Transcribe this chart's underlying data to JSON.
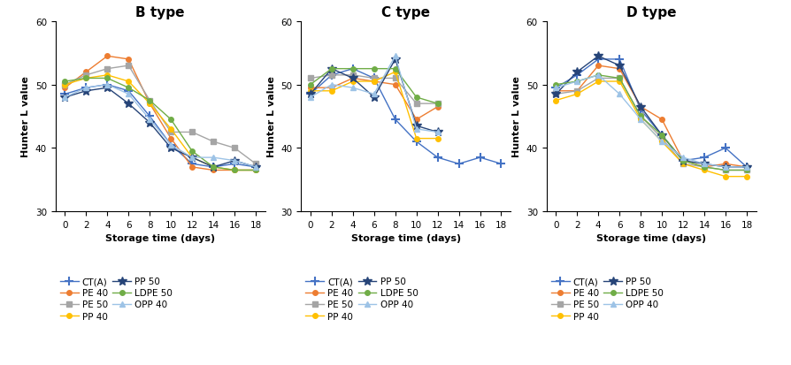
{
  "days_B": [
    0,
    2,
    4,
    6,
    8,
    10,
    12,
    14,
    16,
    18
  ],
  "days_C": [
    0,
    2,
    4,
    6,
    8,
    10,
    12,
    14,
    16,
    18
  ],
  "days_D": [
    0,
    2,
    4,
    6,
    8,
    10,
    12,
    14,
    16,
    18
  ],
  "B": {
    "CT_A": [
      48.5,
      49.5,
      50.0,
      49.0,
      45.0,
      40.5,
      37.5,
      37.0,
      37.5,
      37.0
    ],
    "PE_40": [
      49.5,
      52.0,
      54.5,
      54.0,
      47.0,
      41.5,
      37.0,
      36.5,
      36.5,
      36.5
    ],
    "PE_50": [
      50.0,
      51.5,
      52.5,
      53.0,
      47.5,
      42.5,
      42.5,
      41.0,
      40.0,
      37.5
    ],
    "PP_40": [
      50.0,
      51.0,
      51.5,
      50.5,
      47.0,
      43.0,
      38.5,
      37.0,
      36.5,
      36.5
    ],
    "PP_50": [
      48.0,
      49.0,
      49.5,
      47.0,
      44.0,
      40.0,
      38.5,
      37.0,
      38.0,
      37.0
    ],
    "LDPE_50": [
      50.5,
      51.0,
      51.0,
      49.5,
      47.5,
      44.5,
      39.5,
      37.0,
      36.5,
      36.5
    ],
    "OPP_40": [
      48.0,
      49.5,
      50.0,
      48.5,
      44.5,
      40.5,
      38.5,
      38.5,
      38.0,
      37.0
    ]
  },
  "C": {
    "CT_A": [
      48.5,
      51.5,
      52.5,
      51.0,
      44.5,
      41.0,
      38.5,
      37.5,
      38.5,
      37.5
    ],
    "PE_40": [
      49.5,
      49.5,
      51.0,
      50.5,
      50.0,
      44.5,
      46.5,
      null,
      null,
      null
    ],
    "PE_50": [
      51.0,
      51.5,
      51.5,
      51.0,
      51.0,
      47.0,
      47.0,
      null,
      null,
      null
    ],
    "PP_40": [
      49.0,
      49.0,
      50.5,
      50.5,
      52.0,
      41.5,
      41.5,
      null,
      null,
      null
    ],
    "PP_50": [
      48.5,
      52.5,
      51.0,
      48.0,
      54.0,
      43.5,
      42.5,
      null,
      null,
      null
    ],
    "LDPE_50": [
      50.0,
      52.5,
      52.5,
      52.5,
      52.5,
      48.0,
      47.0,
      null,
      null,
      null
    ],
    "OPP_40": [
      48.0,
      50.0,
      49.5,
      48.5,
      54.5,
      43.0,
      42.5,
      null,
      null,
      null
    ]
  },
  "D": {
    "CT_A": [
      49.5,
      51.5,
      54.0,
      54.0,
      46.0,
      42.0,
      38.0,
      38.5,
      40.0,
      37.0
    ],
    "PE_40": [
      49.0,
      49.0,
      53.0,
      52.5,
      46.5,
      44.5,
      38.0,
      37.0,
      37.5,
      37.0
    ],
    "PE_50": [
      48.5,
      49.0,
      51.0,
      51.0,
      45.0,
      41.5,
      37.5,
      37.0,
      36.5,
      36.5
    ],
    "PP_40": [
      47.5,
      48.5,
      50.5,
      50.5,
      44.5,
      41.0,
      37.5,
      36.5,
      35.5,
      35.5
    ],
    "PP_50": [
      48.5,
      52.0,
      54.5,
      53.0,
      46.5,
      42.0,
      38.0,
      37.5,
      37.0,
      37.0
    ],
    "LDPE_50": [
      50.0,
      50.5,
      51.5,
      51.0,
      45.0,
      42.0,
      38.0,
      37.0,
      36.5,
      36.5
    ],
    "OPP_40": [
      49.5,
      50.5,
      51.5,
      48.5,
      44.5,
      41.0,
      38.5,
      37.5,
      37.0,
      37.0
    ]
  },
  "series_styles": {
    "CT_A": {
      "color": "#4472C4",
      "marker": "+",
      "markersize": 7,
      "linestyle": "-",
      "label": "CT(A)",
      "markeredgewidth": 1.5
    },
    "PE_40": {
      "color": "#ED7D31",
      "marker": "o",
      "markersize": 4,
      "linestyle": "-",
      "label": "PE 40",
      "markeredgewidth": 1.0
    },
    "PE_50": {
      "color": "#A5A5A5",
      "marker": "s",
      "markersize": 4,
      "linestyle": "-",
      "label": "PE 50",
      "markeredgewidth": 1.0
    },
    "PP_40": {
      "color": "#FFC000",
      "marker": "o",
      "markersize": 4,
      "linestyle": "-",
      "label": "PP 40",
      "markeredgewidth": 1.0
    },
    "PP_50": {
      "color": "#264478",
      "marker": "*",
      "markersize": 7,
      "linestyle": "-",
      "label": "PP 50",
      "markeredgewidth": 1.0
    },
    "LDPE_50": {
      "color": "#70AD47",
      "marker": "o",
      "markersize": 4,
      "linestyle": "-",
      "label": "LDPE 50",
      "markeredgewidth": 1.0
    },
    "OPP_40": {
      "color": "#9DC3E6",
      "marker": "^",
      "markersize": 4,
      "linestyle": "-",
      "label": "OPP 40",
      "markeredgewidth": 1.0
    }
  },
  "titles": [
    "B type",
    "C type",
    "D type"
  ],
  "ylabel": "Hunter L value",
  "xlabel": "Storage time (days)",
  "ylim": [
    30,
    60
  ],
  "yticks": [
    30,
    40,
    50,
    60
  ],
  "xticks": [
    0,
    2,
    4,
    6,
    8,
    10,
    12,
    14,
    16,
    18
  ],
  "legend_col1": [
    "CT_A",
    "PE_50",
    "PP_50",
    "OPP_40"
  ],
  "legend_col2": [
    "PE_40",
    "PP_40",
    "LDPE_50"
  ]
}
